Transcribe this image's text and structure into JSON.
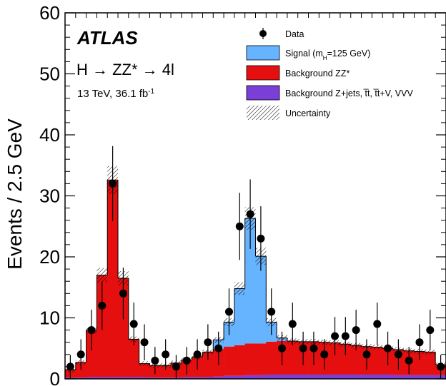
{
  "chart_data": {
    "type": "bar",
    "ylabel": "Events / 2.5 GeV",
    "ylim": [
      0,
      60
    ],
    "yticks": [
      0,
      10,
      20,
      30,
      40,
      50,
      60
    ],
    "annotations": {
      "experiment": "ATLAS",
      "process": "H → ZZ* → 4l",
      "energy": "13 TeV, 36.1 fb",
      "lumi_exponent": "-1"
    },
    "legend": {
      "placement": "top-right",
      "data": "Data",
      "signal_prefix": "Signal (m",
      "signal_sub": "H",
      "signal_suffix": "=125 GeV)",
      "bkg_zz": "Background ZZ*",
      "bkg_zjets": "Background Z+jets, t̅t, t̅t+V, VVV",
      "uncertainty": "Uncertainty"
    },
    "bins": 36,
    "series": [
      {
        "name": "Background Z+jets, tt̅, tt̅+V, VVV",
        "values": [
          0.2,
          0.2,
          0.3,
          0.3,
          0.3,
          0.3,
          0.3,
          0.3,
          0.2,
          0.2,
          0.2,
          0.3,
          0.3,
          0.3,
          0.4,
          0.5,
          0.5,
          0.6,
          0.6,
          0.7,
          0.7,
          0.7,
          0.7,
          0.7,
          0.7,
          0.7,
          0.7,
          0.7,
          0.7,
          0.7,
          0.7,
          0.6,
          0.6,
          0.6,
          0.6,
          0.6
        ]
      },
      {
        "name": "Background ZZ*",
        "values": [
          1.3,
          2.5,
          7.7,
          16.7,
          32.3,
          16.2,
          6.2,
          2.2,
          2.0,
          2.0,
          2.4,
          2.8,
          3.3,
          4.1,
          4.5,
          4.8,
          5.0,
          5.2,
          5.2,
          5.4,
          5.5,
          5.5,
          5.4,
          5.4,
          5.3,
          5.2,
          5.0,
          4.8,
          4.6,
          4.5,
          4.3,
          4.2,
          4.0,
          3.9,
          3.8,
          1.7
        ]
      },
      {
        "name": "Signal (m_H=125 GeV)",
        "values": [
          0,
          0,
          0,
          0,
          0,
          0,
          0,
          0,
          0,
          0,
          0,
          0,
          0,
          0,
          1.5,
          4.0,
          9.3,
          20.5,
          14.3,
          3.2,
          0.5,
          0,
          0,
          0,
          0,
          0,
          0,
          0,
          0,
          0,
          0,
          0,
          0,
          0,
          0,
          0
        ]
      },
      {
        "name": "Data",
        "values": [
          2,
          4,
          8,
          12,
          32,
          14,
          9,
          6,
          3,
          4,
          2,
          3,
          4,
          6,
          5,
          11,
          25,
          27,
          23,
          11,
          5,
          9,
          5,
          5,
          4,
          7,
          7,
          8,
          4,
          9,
          5,
          4,
          3,
          6,
          8,
          2
        ]
      }
    ]
  }
}
